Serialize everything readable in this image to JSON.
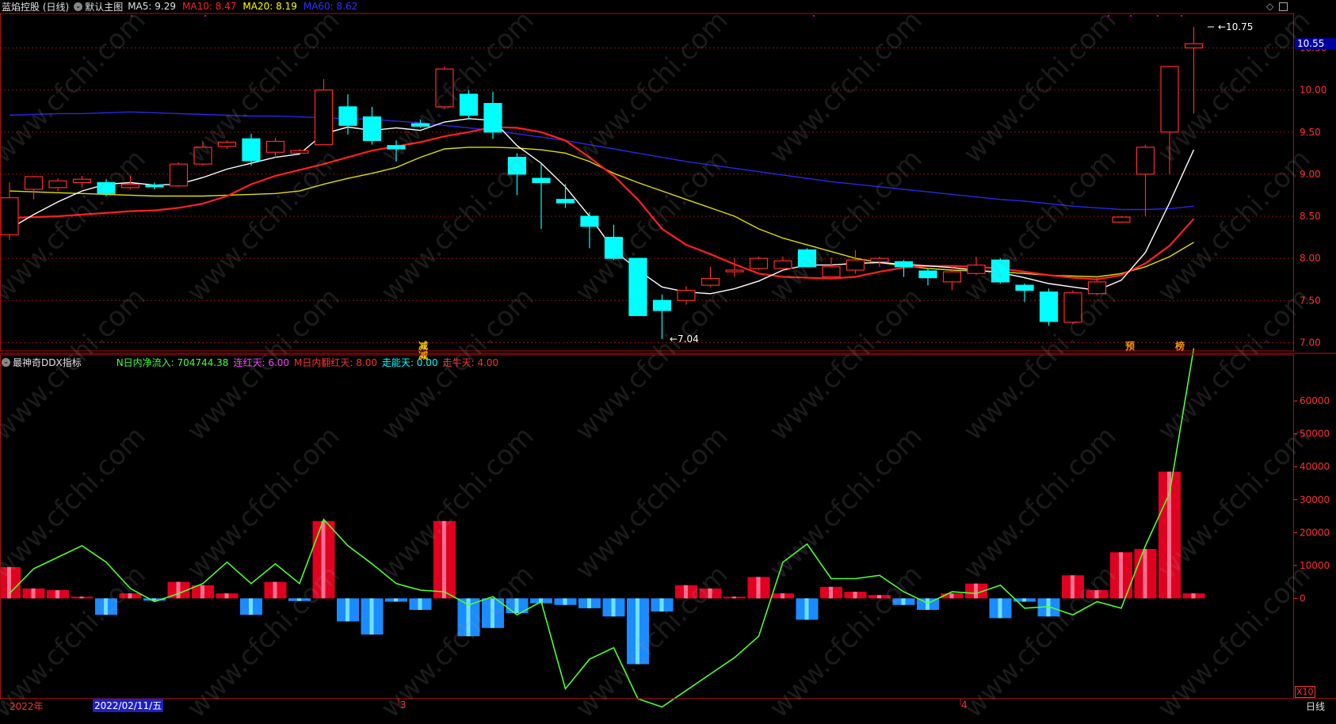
{
  "header": {
    "stock_name": "蓝焰控股 (日线)",
    "main_chart_label": "默认主图",
    "ma": [
      {
        "label": "MA5:",
        "value": "9.29",
        "color": "#ffffff"
      },
      {
        "label": "MA10:",
        "value": "8.47",
        "color": "#ff2020"
      },
      {
        "label": "MA20:",
        "value": "8.19",
        "color": "#ffff00"
      },
      {
        "label": "MA60:",
        "value": "8.62",
        "color": "#3030ff"
      }
    ]
  },
  "indicator": {
    "title": "最神奇DDX指标",
    "items": [
      {
        "label": "N日内净流入:",
        "value": "704744.38",
        "color": "#40ff40"
      },
      {
        "label": "连红天:",
        "value": "6.00",
        "color": "#ff40ff"
      },
      {
        "label": "M日内翻红天:",
        "value": "8.00",
        "color": "#ff3030"
      },
      {
        "label": "走能天:",
        "value": "0.00",
        "color": "#00ffff"
      },
      {
        "label": "走牛天:",
        "value": "4.00",
        "color": "#ff3030"
      }
    ],
    "scale_label": "X10"
  },
  "colors": {
    "up": "#ff2a2a",
    "down": "#00ffff",
    "ma5": "#ffffff",
    "ma10": "#ff2020",
    "ma20": "#e0e000",
    "ma60": "#2828e8",
    "ddx_line": "#50ff30"
  },
  "price_axis": {
    "ticks": [
      "10.50",
      "10.00",
      "9.50",
      "9.00",
      "8.50",
      "8.00",
      "7.50",
      "7.00"
    ],
    "current": "10.55"
  },
  "ddx_axis": {
    "ticks": [
      "60000",
      "50000",
      "40000",
      "30000",
      "20000",
      "10000",
      "0"
    ]
  },
  "annotations": {
    "high": "10.75",
    "low": "7.04",
    "markers": [
      "减",
      "减",
      "预",
      "榜"
    ]
  },
  "x_axis": {
    "start_label": "2022年",
    "date_label": "2022/02/11/五",
    "month_labels": [
      "3",
      "4"
    ],
    "period": "日线"
  },
  "watermark": "www.cfchi.com",
  "chart_data": {
    "type": "candlestick",
    "price_ylim": [
      6.9,
      10.9
    ],
    "ddx_ylim": [
      -30000,
      74000
    ],
    "candles": [
      {
        "o": 8.28,
        "h": 8.9,
        "l": 8.22,
        "c": 8.72
      },
      {
        "o": 8.82,
        "h": 8.98,
        "l": 8.7,
        "c": 8.97
      },
      {
        "o": 8.84,
        "h": 8.95,
        "l": 8.8,
        "c": 8.92
      },
      {
        "o": 8.9,
        "h": 8.98,
        "l": 8.84,
        "c": 8.94
      },
      {
        "o": 8.9,
        "h": 8.94,
        "l": 8.74,
        "c": 8.77
      },
      {
        "o": 8.84,
        "h": 8.98,
        "l": 8.82,
        "c": 8.88
      },
      {
        "o": 8.87,
        "h": 8.9,
        "l": 8.82,
        "c": 8.85
      },
      {
        "o": 8.86,
        "h": 9.14,
        "l": 8.85,
        "c": 9.12
      },
      {
        "o": 9.12,
        "h": 9.38,
        "l": 9.1,
        "c": 9.32
      },
      {
        "o": 9.33,
        "h": 9.4,
        "l": 9.3,
        "c": 9.38
      },
      {
        "o": 9.42,
        "h": 9.48,
        "l": 9.1,
        "c": 9.16
      },
      {
        "o": 9.26,
        "h": 9.43,
        "l": 9.2,
        "c": 9.39
      },
      {
        "o": 9.25,
        "h": 9.3,
        "l": 9.25,
        "c": 9.28
      },
      {
        "o": 9.35,
        "h": 10.13,
        "l": 9.35,
        "c": 10.0
      },
      {
        "o": 9.8,
        "h": 9.95,
        "l": 9.47,
        "c": 9.58
      },
      {
        "o": 9.68,
        "h": 9.8,
        "l": 9.35,
        "c": 9.4
      },
      {
        "o": 9.34,
        "h": 9.4,
        "l": 9.15,
        "c": 9.3
      },
      {
        "o": 9.6,
        "h": 9.65,
        "l": 9.55,
        "c": 9.57
      },
      {
        "o": 9.8,
        "h": 10.28,
        "l": 9.78,
        "c": 10.25
      },
      {
        "o": 9.95,
        "h": 10.0,
        "l": 9.65,
        "c": 9.7
      },
      {
        "o": 9.84,
        "h": 9.98,
        "l": 9.42,
        "c": 9.5
      },
      {
        "o": 9.2,
        "h": 9.25,
        "l": 8.75,
        "c": 9.0
      },
      {
        "o": 8.95,
        "h": 9.12,
        "l": 8.35,
        "c": 8.9
      },
      {
        "o": 8.7,
        "h": 8.88,
        "l": 8.6,
        "c": 8.66
      },
      {
        "o": 8.5,
        "h": 8.55,
        "l": 8.12,
        "c": 8.38
      },
      {
        "o": 8.25,
        "h": 8.4,
        "l": 7.98,
        "c": 8.0
      },
      {
        "o": 8.0,
        "h": 8.0,
        "l": 7.32,
        "c": 7.32
      },
      {
        "o": 7.5,
        "h": 7.57,
        "l": 7.04,
        "c": 7.38
      },
      {
        "o": 7.5,
        "h": 7.67,
        "l": 7.45,
        "c": 7.62
      },
      {
        "o": 7.68,
        "h": 7.9,
        "l": 7.66,
        "c": 7.76
      },
      {
        "o": 7.84,
        "h": 8.0,
        "l": 7.78,
        "c": 7.86
      },
      {
        "o": 7.88,
        "h": 8.02,
        "l": 7.86,
        "c": 8.0
      },
      {
        "o": 7.88,
        "h": 8.02,
        "l": 7.86,
        "c": 7.97
      },
      {
        "o": 8.1,
        "h": 8.12,
        "l": 7.9,
        "c": 7.9
      },
      {
        "o": 7.78,
        "h": 8.01,
        "l": 7.78,
        "c": 7.9
      },
      {
        "o": 7.86,
        "h": 8.1,
        "l": 7.82,
        "c": 7.98
      },
      {
        "o": 7.96,
        "h": 8.02,
        "l": 7.9,
        "c": 8.0
      },
      {
        "o": 7.96,
        "h": 7.98,
        "l": 7.78,
        "c": 7.9
      },
      {
        "o": 7.85,
        "h": 7.88,
        "l": 7.68,
        "c": 7.77
      },
      {
        "o": 7.72,
        "h": 7.9,
        "l": 7.62,
        "c": 7.84
      },
      {
        "o": 7.82,
        "h": 8.02,
        "l": 7.8,
        "c": 7.92
      },
      {
        "o": 7.98,
        "h": 8.0,
        "l": 7.7,
        "c": 7.72
      },
      {
        "o": 7.68,
        "h": 7.7,
        "l": 7.48,
        "c": 7.62
      },
      {
        "o": 7.6,
        "h": 7.64,
        "l": 7.2,
        "c": 7.25
      },
      {
        "o": 7.24,
        "h": 7.62,
        "l": 7.22,
        "c": 7.59
      },
      {
        "o": 7.58,
        "h": 7.78,
        "l": 7.56,
        "c": 7.72
      },
      {
        "o": 8.43,
        "h": 8.5,
        "l": 8.43,
        "c": 8.49
      },
      {
        "o": 9.0,
        "h": 9.35,
        "l": 8.5,
        "c": 9.32
      },
      {
        "o": 9.5,
        "h": 10.28,
        "l": 9.0,
        "c": 10.28
      },
      {
        "o": 10.5,
        "h": 10.75,
        "l": 9.72,
        "c": 10.55
      }
    ],
    "series": [
      {
        "name": "MA5",
        "values": [
          8.35,
          8.52,
          8.67,
          8.8,
          8.88,
          8.9,
          8.87,
          8.88,
          8.96,
          9.06,
          9.13,
          9.2,
          9.24,
          9.48,
          9.56,
          9.52,
          9.55,
          9.52,
          9.62,
          9.66,
          9.64,
          9.34,
          9.13,
          8.85,
          8.5,
          8.1,
          7.86,
          7.66,
          7.6,
          7.58,
          7.64,
          7.73,
          7.86,
          7.92,
          7.92,
          7.94,
          7.95,
          7.93,
          7.91,
          7.89,
          7.86,
          7.83,
          7.77,
          7.7,
          7.66,
          7.62,
          7.74,
          8.07,
          8.66,
          9.29
        ]
      },
      {
        "name": "MA10",
        "values": [
          8.48,
          8.49,
          8.5,
          8.52,
          8.54,
          8.56,
          8.57,
          8.6,
          8.65,
          8.74,
          8.88,
          8.98,
          9.05,
          9.12,
          9.2,
          9.28,
          9.33,
          9.38,
          9.45,
          9.5,
          9.56,
          9.55,
          9.5,
          9.4,
          9.2,
          8.98,
          8.7,
          8.35,
          8.16,
          8.05,
          7.93,
          7.82,
          7.78,
          7.77,
          7.76,
          7.78,
          7.84,
          7.89,
          7.91,
          7.91,
          7.9,
          7.88,
          7.84,
          7.8,
          7.77,
          7.75,
          7.8,
          7.94,
          8.15,
          8.47
        ]
      },
      {
        "name": "MA20",
        "values": [
          8.8,
          8.79,
          8.78,
          8.77,
          8.76,
          8.75,
          8.74,
          8.74,
          8.74,
          8.75,
          8.76,
          8.77,
          8.8,
          8.88,
          8.95,
          9.01,
          9.08,
          9.2,
          9.3,
          9.32,
          9.32,
          9.31,
          9.29,
          9.25,
          9.15,
          9.01,
          8.9,
          8.8,
          8.7,
          8.6,
          8.5,
          8.35,
          8.24,
          8.16,
          8.08,
          8.0,
          7.95,
          7.91,
          7.88,
          7.86,
          7.85,
          7.84,
          7.82,
          7.8,
          7.79,
          7.78,
          7.82,
          7.9,
          8.02,
          8.19
        ]
      },
      {
        "name": "MA60",
        "values": [
          9.7,
          9.71,
          9.72,
          9.72,
          9.73,
          9.74,
          9.73,
          9.72,
          9.71,
          9.7,
          9.69,
          9.69,
          9.68,
          9.67,
          9.66,
          9.65,
          9.63,
          9.61,
          9.58,
          9.55,
          9.52,
          9.48,
          9.44,
          9.4,
          9.35,
          9.3,
          9.25,
          9.2,
          9.15,
          9.11,
          9.07,
          9.03,
          8.99,
          8.95,
          8.91,
          8.88,
          8.85,
          8.82,
          8.79,
          8.76,
          8.73,
          8.7,
          8.68,
          8.65,
          8.62,
          8.6,
          8.58,
          8.58,
          8.59,
          8.62
        ]
      }
    ],
    "ddx_bars": [
      9500,
      3000,
      2500,
      500,
      -5000,
      1500,
      -700,
      5000,
      4000,
      1500,
      -5000,
      5000,
      -800,
      23500,
      -7000,
      -11000,
      -1000,
      -3500,
      23500,
      -11500,
      -9000,
      -4500,
      -1500,
      -2000,
      -3000,
      -5500,
      -20000,
      -4000,
      4000,
      3000,
      500,
      6500,
      1500,
      -6500,
      3500,
      2000,
      1000,
      -2000,
      -3500,
      1500,
      4500,
      -6000,
      -1000,
      -5500,
      7000,
      2500,
      14000,
      15000,
      38500,
      1500
    ],
    "ddx_line": [
      1500,
      9000,
      12500,
      16000,
      11000,
      3000,
      -1000,
      1500,
      4500,
      11000,
      4500,
      10500,
      4500,
      24000,
      16000,
      10500,
      4500,
      2500,
      2000,
      -2000,
      500,
      -5000,
      -1000,
      -27500,
      -18500,
      -15000,
      -30500,
      -33000,
      -28000,
      -23000,
      -18000,
      -11500,
      11000,
      16500,
      6000,
      6000,
      7000,
      2000,
      -1500,
      2000,
      1500,
      4000,
      -3000,
      -2500,
      -5000,
      -1000,
      -3000,
      16000,
      32000,
      76000
    ]
  }
}
